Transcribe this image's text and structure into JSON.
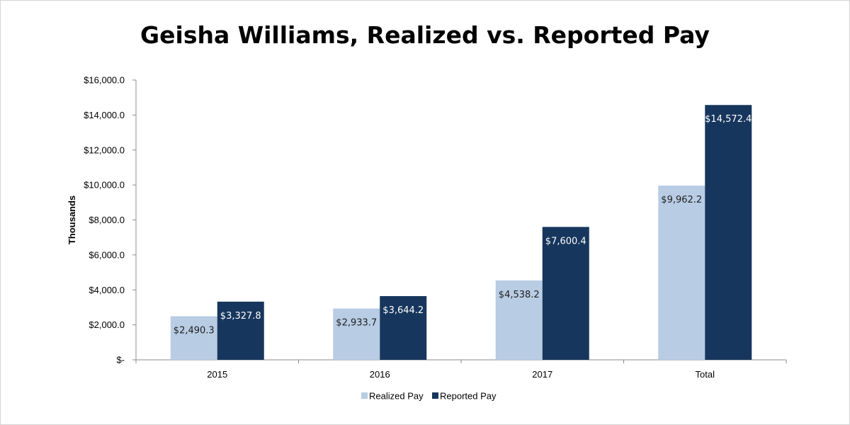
{
  "chart_data": {
    "type": "bar",
    "title": "Geisha Williams, Realized vs. Reported Pay",
    "xlabel": "",
    "ylabel": "Thousands",
    "categories": [
      "2015",
      "2016",
      "2017",
      "Total"
    ],
    "ylim": [
      0,
      16000
    ],
    "yticks": [
      0,
      2000,
      4000,
      6000,
      8000,
      10000,
      12000,
      14000,
      16000
    ],
    "ytick_labels": [
      "$-",
      "$2,000.0",
      "$4,000.0",
      "$6,000.0",
      "$8,000.0",
      "$10,000.0",
      "$12,000.0",
      "$14,000.0",
      "$16,000.0"
    ],
    "series": [
      {
        "name": "Realized Pay",
        "color": "#b8cce4",
        "label_color": "#1f1f1f",
        "values": [
          2490.3,
          2933.7,
          4538.2,
          9962.2
        ],
        "data_labels": [
          "$2,490.3",
          "$2,933.7",
          "$4,538.2",
          "$9,962.2"
        ]
      },
      {
        "name": "Reported Pay",
        "color": "#17365d",
        "label_color": "#ffffff",
        "values": [
          3327.8,
          3644.2,
          7600.4,
          14572.4
        ],
        "data_labels": [
          "$3,327.8",
          "$3,644.2",
          "$7,600.4",
          "$14,572.4"
        ]
      }
    ],
    "grid": false,
    "legend_position": "bottom"
  }
}
